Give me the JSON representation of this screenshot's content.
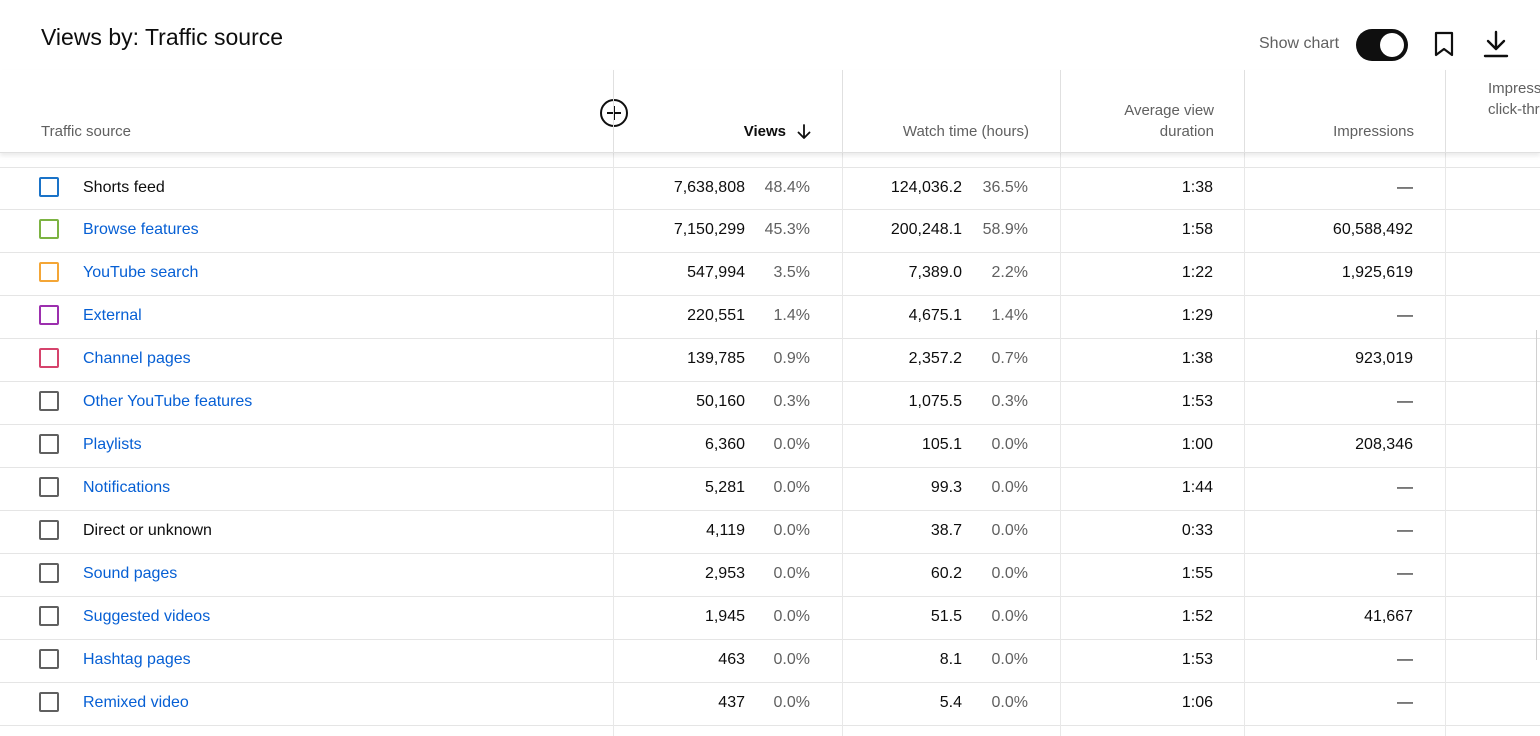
{
  "title": "Views by: Traffic source",
  "controls": {
    "show_chart_label": "Show chart",
    "show_chart_on": true
  },
  "columns": {
    "source": "Traffic source",
    "views": "Views",
    "watch_time": "Watch time (hours)",
    "avg_view_duration_line1": "Average view",
    "avg_view_duration_line2": "duration",
    "impressions": "Impressions",
    "ctr_line1": "Impressions",
    "ctr_line2": "click-through rate"
  },
  "rows": [
    {
      "source": "Shorts feed",
      "link": false,
      "color": "#1a73c8",
      "views": "7,638,808",
      "views_pct": "48.4%",
      "watch": "124,036.2",
      "watch_pct": "36.5%",
      "avg": "1:38",
      "impressions": "—"
    },
    {
      "source": "Browse features",
      "link": true,
      "color": "#7cb342",
      "views": "7,150,299",
      "views_pct": "45.3%",
      "watch": "200,248.1",
      "watch_pct": "58.9%",
      "avg": "1:58",
      "impressions": "60,588,492"
    },
    {
      "source": "YouTube search",
      "link": true,
      "color": "#f4a636",
      "views": "547,994",
      "views_pct": "3.5%",
      "watch": "7,389.0",
      "watch_pct": "2.2%",
      "avg": "1:22",
      "impressions": "1,925,619"
    },
    {
      "source": "External",
      "link": true,
      "color": "#9c2fae",
      "views": "220,551",
      "views_pct": "1.4%",
      "watch": "4,675.1",
      "watch_pct": "1.4%",
      "avg": "1:29",
      "impressions": "—"
    },
    {
      "source": "Channel pages",
      "link": true,
      "color": "#d6436c",
      "views": "139,785",
      "views_pct": "0.9%",
      "watch": "2,357.2",
      "watch_pct": "0.7%",
      "avg": "1:38",
      "impressions": "923,019"
    },
    {
      "source": "Other YouTube features",
      "link": true,
      "color": "#606060",
      "views": "50,160",
      "views_pct": "0.3%",
      "watch": "1,075.5",
      "watch_pct": "0.3%",
      "avg": "1:53",
      "impressions": "—"
    },
    {
      "source": "Playlists",
      "link": true,
      "color": "#606060",
      "views": "6,360",
      "views_pct": "0.0%",
      "watch": "105.1",
      "watch_pct": "0.0%",
      "avg": "1:00",
      "impressions": "208,346"
    },
    {
      "source": "Notifications",
      "link": true,
      "color": "#606060",
      "views": "5,281",
      "views_pct": "0.0%",
      "watch": "99.3",
      "watch_pct": "0.0%",
      "avg": "1:44",
      "impressions": "—"
    },
    {
      "source": "Direct or unknown",
      "link": false,
      "color": "#606060",
      "views": "4,119",
      "views_pct": "0.0%",
      "watch": "38.7",
      "watch_pct": "0.0%",
      "avg": "0:33",
      "impressions": "—"
    },
    {
      "source": "Sound pages",
      "link": true,
      "color": "#606060",
      "views": "2,953",
      "views_pct": "0.0%",
      "watch": "60.2",
      "watch_pct": "0.0%",
      "avg": "1:55",
      "impressions": "—"
    },
    {
      "source": "Suggested videos",
      "link": true,
      "color": "#606060",
      "views": "1,945",
      "views_pct": "0.0%",
      "watch": "51.5",
      "watch_pct": "0.0%",
      "avg": "1:52",
      "impressions": "41,667"
    },
    {
      "source": "Hashtag pages",
      "link": true,
      "color": "#606060",
      "views": "463",
      "views_pct": "0.0%",
      "watch": "8.1",
      "watch_pct": "0.0%",
      "avg": "1:53",
      "impressions": "—"
    },
    {
      "source": "Remixed video",
      "link": true,
      "color": "#606060",
      "views": "437",
      "views_pct": "0.0%",
      "watch": "5.4",
      "watch_pct": "0.0%",
      "avg": "1:06",
      "impressions": "—"
    }
  ]
}
